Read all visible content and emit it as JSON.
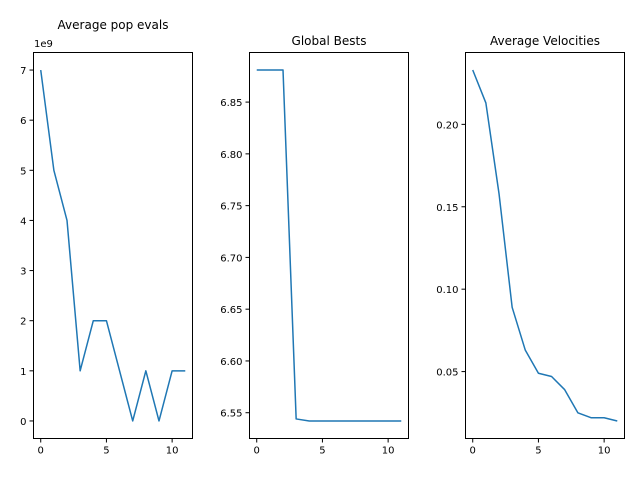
{
  "chart_data": [
    {
      "type": "line",
      "title": "Average pop evals",
      "offset_text": "1e9",
      "x": [
        0,
        1,
        2,
        3,
        4,
        5,
        6,
        7,
        8,
        9,
        10,
        11
      ],
      "series": [
        {
          "values": [
            7.0,
            5.0,
            4.0,
            1.0,
            2.0,
            2.0,
            1.0,
            0.0,
            1.0,
            0.0,
            1.0,
            1.0
          ],
          "color": "#1f77b4"
        }
      ],
      "xlim": [
        -0.55,
        11.55
      ],
      "ylim": [
        -0.35,
        7.35
      ],
      "xticks": [
        0,
        5,
        10
      ],
      "xtick_labels": [
        "0",
        "5",
        "10"
      ],
      "yticks": [
        0,
        1,
        2,
        3,
        4,
        5,
        6,
        7
      ],
      "ytick_labels": [
        "0",
        "1",
        "2",
        "3",
        "4",
        "5",
        "6",
        "7"
      ],
      "grid": false
    },
    {
      "type": "line",
      "title": "Global Bests",
      "x": [
        0,
        1,
        2,
        3,
        4,
        5,
        6,
        7,
        8,
        9,
        10,
        11
      ],
      "series": [
        {
          "values": [
            6.881,
            6.881,
            6.881,
            6.544,
            6.542,
            6.542,
            6.542,
            6.542,
            6.542,
            6.542,
            6.542,
            6.542
          ],
          "color": "#1f77b4"
        }
      ],
      "xlim": [
        -0.55,
        11.55
      ],
      "ylim": [
        6.5251,
        6.8979
      ],
      "xticks": [
        0,
        5,
        10
      ],
      "xtick_labels": [
        "0",
        "5",
        "10"
      ],
      "yticks": [
        6.55,
        6.6,
        6.65,
        6.7,
        6.75,
        6.8,
        6.85
      ],
      "ytick_labels": [
        "6.55",
        "6.60",
        "6.65",
        "6.70",
        "6.75",
        "6.80",
        "6.85"
      ],
      "grid": false
    },
    {
      "type": "line",
      "title": "Average Velocities",
      "x": [
        0,
        1,
        2,
        3,
        4,
        5,
        6,
        7,
        8,
        9,
        10,
        11
      ],
      "series": [
        {
          "values": [
            0.233,
            0.213,
            0.158,
            0.089,
            0.063,
            0.049,
            0.047,
            0.039,
            0.025,
            0.022,
            0.022,
            0.02
          ],
          "color": "#1f77b4"
        }
      ],
      "xlim": [
        -0.55,
        11.55
      ],
      "ylim": [
        0.0094,
        0.2436
      ],
      "xticks": [
        0,
        5,
        10
      ],
      "xtick_labels": [
        "0",
        "5",
        "10"
      ],
      "yticks": [
        0.05,
        0.1,
        0.15,
        0.2
      ],
      "ytick_labels": [
        "0.05",
        "0.10",
        "0.15",
        "0.20"
      ],
      "grid": false
    }
  ]
}
